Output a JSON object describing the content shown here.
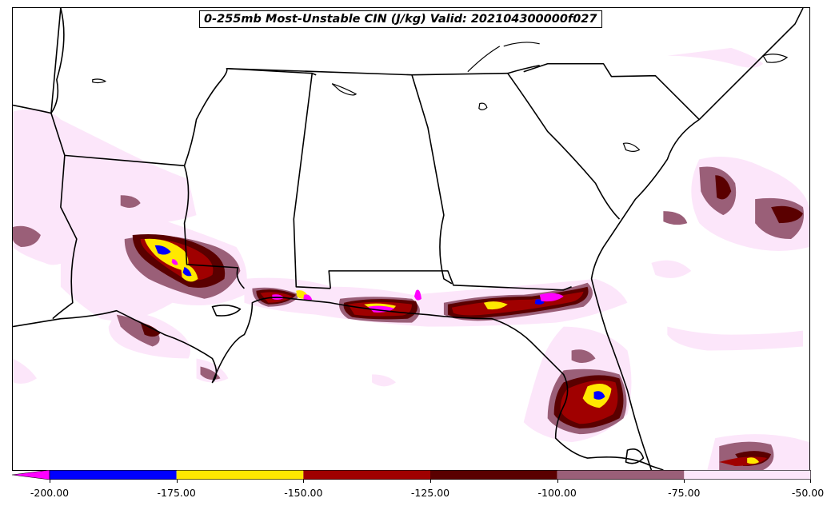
{
  "title": "0-255mb Most-Unstable CIN (J/kg) Valid: 202104300000f027",
  "map": {
    "region": "Southeastern United States and northern Gulf of Mexico",
    "colors": {
      "land_outline": "#000000",
      "background": "#ffffff"
    }
  },
  "colorbar": {
    "extend": "min",
    "extension_color": "#ff00ff",
    "bins": [
      {
        "from": -200,
        "to": -175,
        "color": "#0000ff"
      },
      {
        "from": -175,
        "to": -150,
        "color": "#ffe800"
      },
      {
        "from": -150,
        "to": -125,
        "color": "#a00000"
      },
      {
        "from": -125,
        "to": -100,
        "color": "#5a0000"
      },
      {
        "from": -100,
        "to": -75,
        "color": "#9a5f78"
      },
      {
        "from": -75,
        "to": -50,
        "color": "#fce6fa"
      }
    ],
    "ticks": [
      "-200.00",
      "-175.00",
      "-150.00",
      "-125.00",
      "-100.00",
      "-75.00",
      "-50.00"
    ]
  }
}
